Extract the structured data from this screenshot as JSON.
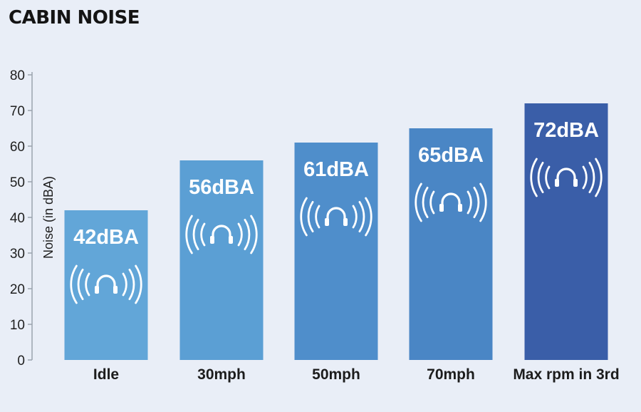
{
  "chart_data": {
    "type": "bar",
    "title": "CABIN NOISE",
    "ylabel": "Noise (in dBA)",
    "xlabel": "",
    "categories": [
      "Idle",
      "30mph",
      "50mph",
      "70mph",
      "Max rpm in 3rd"
    ],
    "values": [
      42,
      56,
      61,
      65,
      72
    ],
    "data_labels": [
      "42dBA",
      "56dBA",
      "61dBA",
      "65dBA",
      "72dBA"
    ],
    "ylim": [
      0,
      80
    ],
    "yticks": [
      "0",
      "10",
      "20",
      "30",
      "40",
      "50",
      "60",
      "70",
      "80"
    ],
    "grid": false,
    "bar_colors": [
      "#62a6d8",
      "#5b9fd4",
      "#4f8ecb",
      "#4a86c5",
      "#3a5ea8"
    ],
    "bar_icon": "headphones-sound-waves-icon",
    "colors": {
      "background": "#e9eef7",
      "axis": "#9aa3ad",
      "title": "#141414",
      "label_text": "#ffffff"
    }
  }
}
